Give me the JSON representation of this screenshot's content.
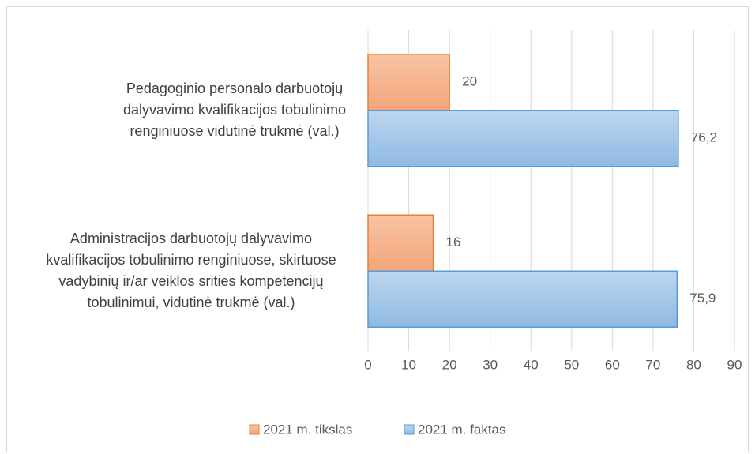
{
  "chart_data": {
    "type": "barh",
    "categories": [
      "Pedagoginio personalo darbuotojų dalyvavimo kvalifikacijos tobulinimo renginiuose vidutinė trukmė (val.)",
      "Administracijos darbuotojų dalyvavimo kvalifikacijos tobulinimo renginiuose, skirtuose vadybinių ir/ar veiklos srities kompetencijų tobulinimui, vidutinė trukmė (val.)"
    ],
    "series": [
      {
        "name": "2021 m. tikslas",
        "color": "#ed7d31",
        "values": [
          20,
          16
        ]
      },
      {
        "name": "2021 m. faktas",
        "color": "#5b9bd5",
        "values": [
          76.2,
          75.9
        ],
        "value_labels": [
          "76,2",
          "75,9"
        ]
      }
    ],
    "xlim": [
      0,
      90
    ],
    "xticks": [
      0,
      10,
      20,
      30,
      40,
      50,
      60,
      70,
      80,
      90
    ],
    "grid": true,
    "legend": "bottom"
  }
}
